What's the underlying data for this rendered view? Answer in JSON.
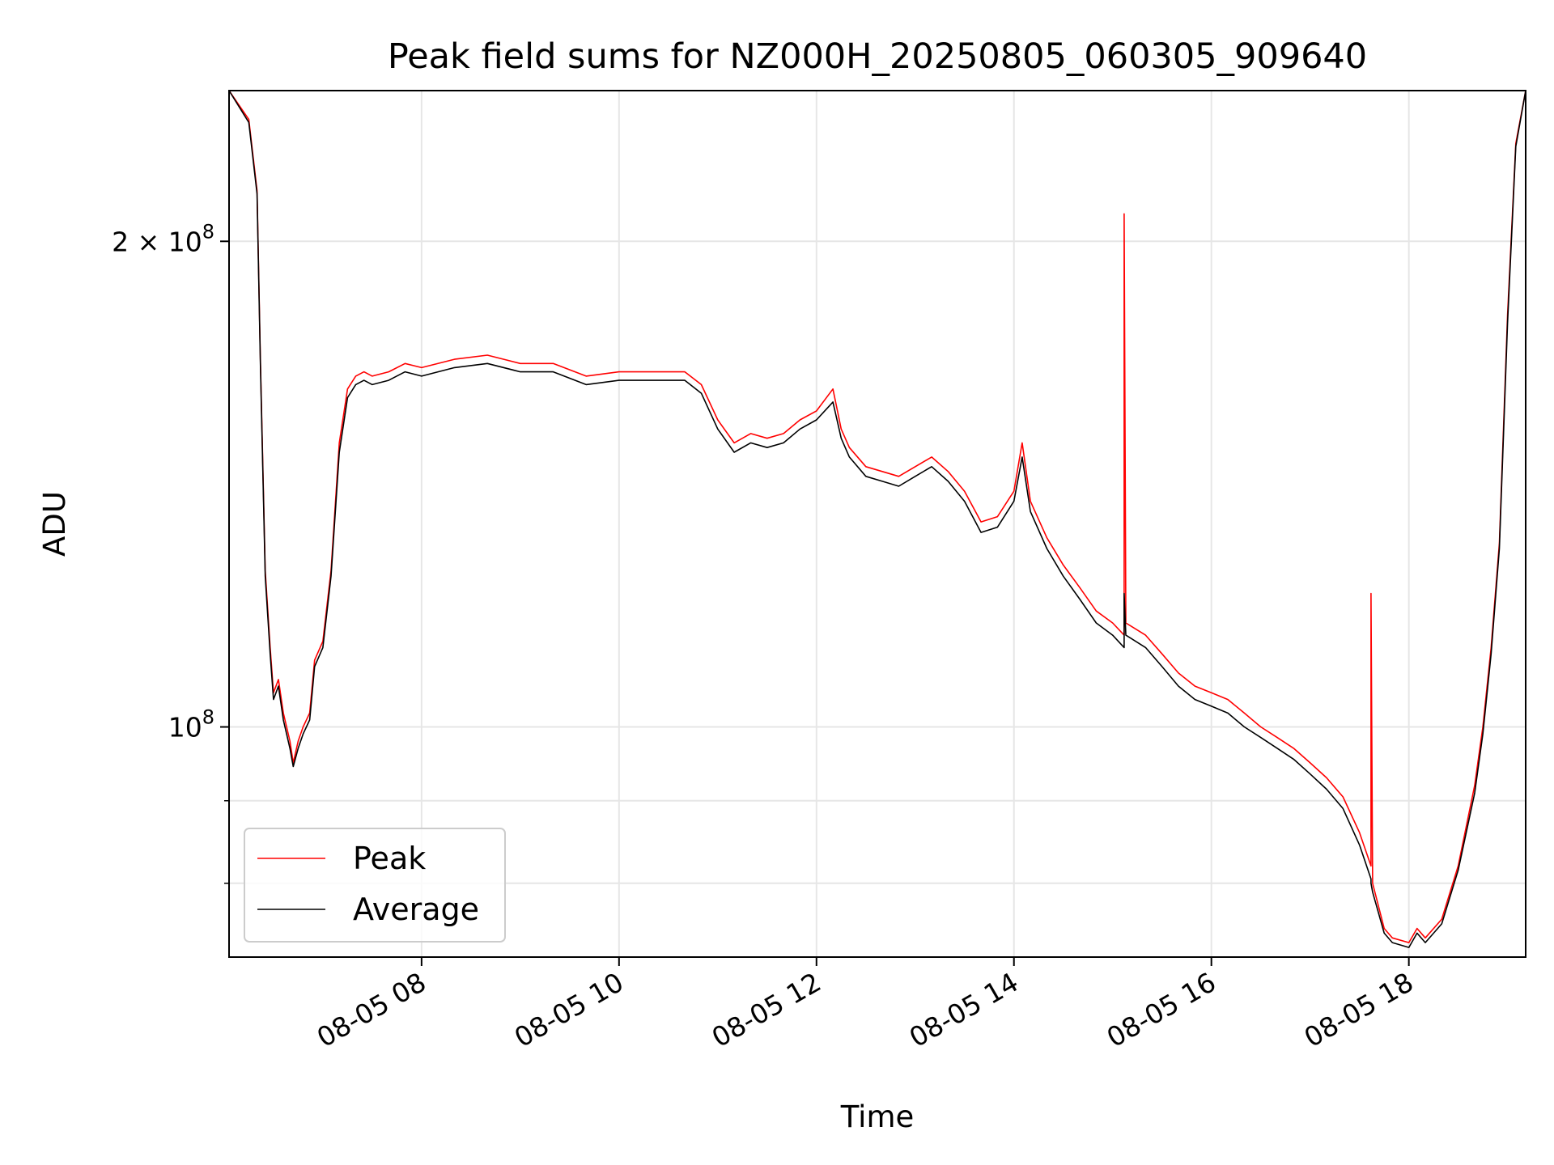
{
  "chart_data": {
    "type": "line",
    "title": "Peak field sums for NZ000H_20250805_060305_909640",
    "xlabel": "Time",
    "ylabel": "ADU",
    "yscale": "log",
    "xlim": [
      "2025-08-05 06:03",
      "2025-08-05 19:11"
    ],
    "ylim": [
      72000000,
      248000000
    ],
    "grid": true,
    "legend": {
      "placement": "lower-left",
      "entries": [
        "Peak",
        "Average"
      ]
    },
    "x_ticks": [
      {
        "value": "2025-08-05 08:00",
        "label": "08-05 08"
      },
      {
        "value": "2025-08-05 10:00",
        "label": "08-05 10"
      },
      {
        "value": "2025-08-05 12:00",
        "label": "08-05 12"
      },
      {
        "value": "2025-08-05 14:00",
        "label": "08-05 14"
      },
      {
        "value": "2025-08-05 16:00",
        "label": "08-05 16"
      },
      {
        "value": "2025-08-05 18:00",
        "label": "08-05 18"
      }
    ],
    "y_ticks": [
      {
        "value": 200000000,
        "label_base": "2 × 10",
        "label_exp": "8"
      },
      {
        "value": 100000000,
        "label_base": "10",
        "label_exp": "8"
      }
    ],
    "y_minor_ticks": [
      80000000,
      90000000
    ],
    "series": [
      {
        "name": "Peak",
        "color": "#ff0000",
        "x": [
          "06:03",
          "06:15",
          "06:20",
          "06:22",
          "06:25",
          "06:28",
          "06:30",
          "06:33",
          "06:36",
          "06:40",
          "06:42",
          "06:45",
          "06:48",
          "06:52",
          "06:55",
          "07:00",
          "07:05",
          "07:10",
          "07:15",
          "07:20",
          "07:25",
          "07:30",
          "07:40",
          "07:50",
          "08:00",
          "08:20",
          "08:40",
          "09:00",
          "09:20",
          "09:40",
          "10:00",
          "10:20",
          "10:40",
          "10:50",
          "11:00",
          "11:10",
          "11:20",
          "11:30",
          "11:40",
          "11:50",
          "12:00",
          "12:10",
          "12:15",
          "12:20",
          "12:30",
          "12:40",
          "12:50",
          "13:00",
          "13:10",
          "13:20",
          "13:30",
          "13:40",
          "13:50",
          "14:00",
          "14:05",
          "14:10",
          "14:20",
          "14:30",
          "14:40",
          "14:50",
          "15:00",
          "15:07",
          "15:07",
          "15:08",
          "15:20",
          "15:30",
          "15:40",
          "15:50",
          "16:00",
          "16:10",
          "16:20",
          "16:30",
          "16:40",
          "16:50",
          "17:00",
          "17:10",
          "17:20",
          "17:30",
          "17:37",
          "17:37",
          "17:38",
          "17:45",
          "17:50",
          "18:00",
          "18:05",
          "18:10",
          "18:20",
          "18:30",
          "18:40",
          "18:45",
          "18:50",
          "18:55",
          "19:00",
          "19:05",
          "19:11"
        ],
        "y": [
          248000000,
          238000000,
          215000000,
          170000000,
          125000000,
          112000000,
          105000000,
          107000000,
          102000000,
          98000000,
          95000000,
          98000000,
          100000000,
          102000000,
          110000000,
          113000000,
          125000000,
          150000000,
          162000000,
          165000000,
          166000000,
          165000000,
          166000000,
          168000000,
          167000000,
          169000000,
          170000000,
          168000000,
          168000000,
          165000000,
          166000000,
          166000000,
          166000000,
          163000000,
          155000000,
          150000000,
          152000000,
          151000000,
          152000000,
          155000000,
          157000000,
          162000000,
          153000000,
          149000000,
          145000000,
          144000000,
          143000000,
          145000000,
          147000000,
          144000000,
          140000000,
          134000000,
          135000000,
          140000000,
          150000000,
          138000000,
          131000000,
          126000000,
          122000000,
          118000000,
          116000000,
          114000000,
          208000000,
          116000000,
          114000000,
          111000000,
          108000000,
          106000000,
          105000000,
          104000000,
          102000000,
          100000000,
          98500000,
          97000000,
          95000000,
          93000000,
          90500000,
          86000000,
          82000000,
          121000000,
          80000000,
          75000000,
          74000000,
          73500000,
          75000000,
          74000000,
          76000000,
          82000000,
          92000000,
          100000000,
          112000000,
          130000000,
          180000000,
          230000000,
          248000000
        ]
      },
      {
        "name": "Average",
        "color": "#000000",
        "x": [
          "06:03",
          "06:15",
          "06:20",
          "06:22",
          "06:25",
          "06:28",
          "06:30",
          "06:33",
          "06:36",
          "06:40",
          "06:42",
          "06:45",
          "06:48",
          "06:52",
          "06:55",
          "07:00",
          "07:05",
          "07:10",
          "07:15",
          "07:20",
          "07:25",
          "07:30",
          "07:40",
          "07:50",
          "08:00",
          "08:20",
          "08:40",
          "09:00",
          "09:20",
          "09:40",
          "10:00",
          "10:20",
          "10:40",
          "10:50",
          "11:00",
          "11:10",
          "11:20",
          "11:30",
          "11:40",
          "11:50",
          "12:00",
          "12:10",
          "12:15",
          "12:20",
          "12:30",
          "12:40",
          "12:50",
          "13:00",
          "13:10",
          "13:20",
          "13:30",
          "13:40",
          "13:50",
          "14:00",
          "14:05",
          "14:10",
          "14:20",
          "14:30",
          "14:40",
          "14:50",
          "15:00",
          "15:07",
          "15:07",
          "15:08",
          "15:20",
          "15:30",
          "15:40",
          "15:50",
          "16:00",
          "16:10",
          "16:20",
          "16:30",
          "16:40",
          "16:50",
          "17:00",
          "17:10",
          "17:20",
          "17:30",
          "17:37",
          "17:37",
          "17:38",
          "17:45",
          "17:50",
          "18:00",
          "18:05",
          "18:10",
          "18:20",
          "18:30",
          "18:40",
          "18:45",
          "18:50",
          "18:55",
          "19:00",
          "19:05",
          "19:11"
        ],
        "y": [
          248000000,
          237000000,
          214000000,
          169000000,
          124000000,
          111000000,
          104000000,
          106000000,
          101000000,
          97000000,
          94500000,
          97000000,
          99000000,
          101000000,
          109000000,
          112000000,
          124000000,
          148000000,
          160000000,
          163000000,
          164000000,
          163000000,
          164000000,
          166000000,
          165000000,
          167000000,
          168000000,
          166000000,
          166000000,
          163000000,
          164000000,
          164000000,
          164000000,
          161000000,
          153000000,
          148000000,
          150000000,
          149000000,
          150000000,
          153000000,
          155000000,
          159000000,
          151000000,
          147000000,
          143000000,
          142000000,
          141000000,
          143000000,
          145000000,
          142000000,
          138000000,
          132000000,
          133000000,
          138000000,
          147000000,
          136000000,
          129000000,
          124000000,
          120000000,
          116000000,
          114000000,
          112000000,
          121000000,
          114000000,
          112000000,
          109000000,
          106000000,
          104000000,
          103000000,
          102000000,
          100000000,
          98500000,
          97000000,
          95500000,
          93500000,
          91500000,
          89000000,
          84500000,
          80500000,
          80000000,
          79000000,
          74500000,
          73500000,
          73000000,
          74500000,
          73500000,
          75500000,
          81500000,
          91000000,
          99000000,
          111000000,
          129000000,
          178000000,
          229000000,
          248000000
        ]
      }
    ]
  }
}
